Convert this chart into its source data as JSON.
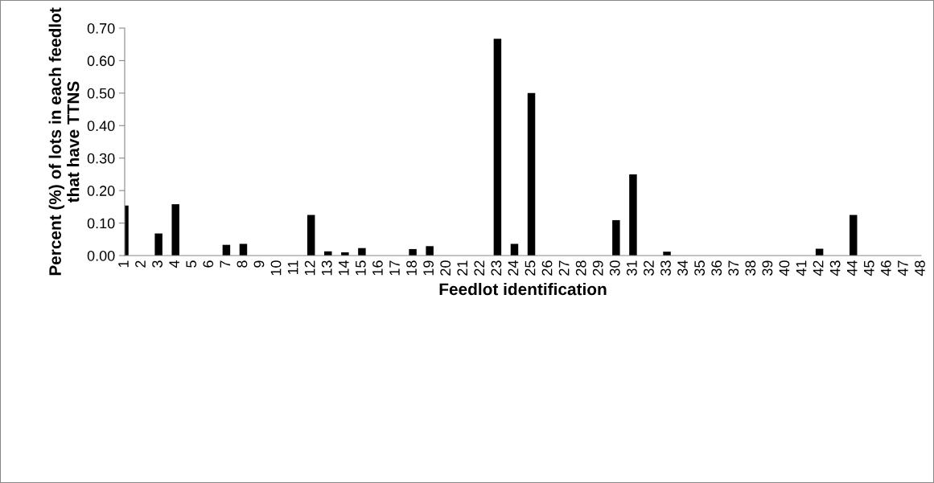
{
  "chart_data": {
    "type": "bar",
    "xlabel": "Feedlot identification",
    "ylabel": "Percent (%) of lots in each feedlot that have TTNS",
    "categories": [
      "1",
      "2",
      "3",
      "4",
      "5",
      "6",
      "7",
      "8",
      "9",
      "10",
      "11",
      "12",
      "13",
      "14",
      "15",
      "16",
      "17",
      "18",
      "19",
      "20",
      "21",
      "22",
      "23",
      "24",
      "25",
      "26",
      "27",
      "28",
      "29",
      "30",
      "31",
      "32",
      "33",
      "34",
      "35",
      "36",
      "37",
      "38",
      "39",
      "40",
      "41",
      "42",
      "43",
      "44",
      "45",
      "46",
      "47",
      "48"
    ],
    "values": [
      0.154,
      0,
      0.068,
      0.158,
      0,
      0,
      0.033,
      0.036,
      0,
      0,
      0,
      0.125,
      0.013,
      0.01,
      0.023,
      0,
      0,
      0.02,
      0.029,
      0,
      0,
      0,
      0.667,
      0.036,
      0.5,
      0,
      0,
      0,
      0,
      0.109,
      0.25,
      0,
      0.012,
      0,
      0,
      0,
      0,
      0,
      0,
      0,
      0,
      0.021,
      0,
      0.125,
      0,
      0,
      0,
      0
    ],
    "color": "#000000",
    "ylim": [
      0,
      0.7
    ],
    "yticks": [
      {
        "value": 0,
        "label": "0.00"
      },
      {
        "value": 0.1,
        "label": "0.10"
      },
      {
        "value": 0.2,
        "label": "0.20"
      },
      {
        "value": 0.3,
        "label": "0.30"
      },
      {
        "value": 0.4,
        "label": "0.40"
      },
      {
        "value": 0.5,
        "label": "0.50"
      },
      {
        "value": 0.6,
        "label": "0.60"
      },
      {
        "value": 0.7,
        "label": "0.70"
      }
    ],
    "grid": false
  }
}
